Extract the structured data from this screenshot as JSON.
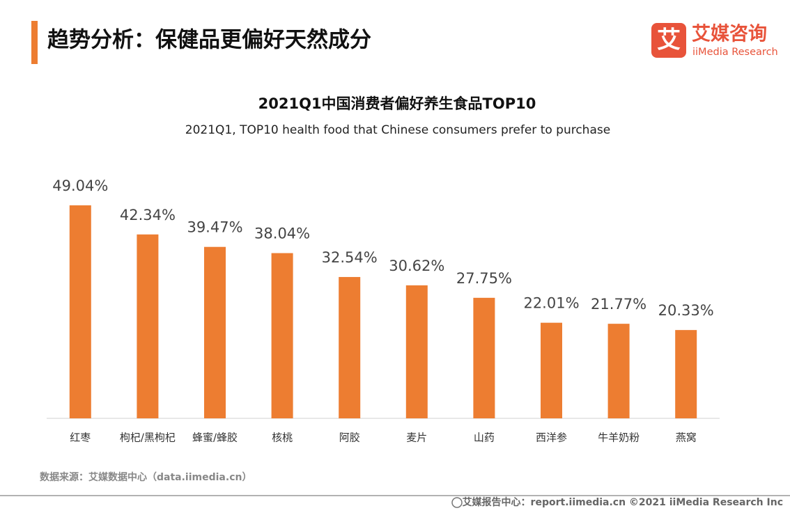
{
  "header": {
    "title": "趋势分析：保健品更偏好天然成分",
    "logo_mark": "艾",
    "logo_name": "艾媒咨询",
    "logo_sub": "iiMedia Research"
  },
  "chart_data": {
    "type": "bar",
    "title": "2021Q1中国消费者偏好养生食品TOP10",
    "subtitle": "2021Q1, TOP10  health food that Chinese consumers prefer to purchase",
    "categories": [
      "红枣",
      "枸杞/黑枸杞",
      "蜂蜜/蜂胶",
      "核桃",
      "阿胶",
      "麦片",
      "山药",
      "西洋参",
      "牛羊奶粉",
      "燕窝"
    ],
    "values": [
      49.04,
      42.34,
      39.47,
      38.04,
      32.54,
      30.62,
      27.75,
      22.01,
      21.77,
      20.33
    ],
    "value_labels": [
      "49.04%",
      "42.34%",
      "39.47%",
      "38.04%",
      "32.54%",
      "30.62%",
      "27.75%",
      "22.01%",
      "21.77%",
      "20.33%"
    ],
    "color": "#ed7d31"
  },
  "source": "数据来源：艾媒数据中心（data.iimedia.cn）",
  "footer": "艾媒报告中心：report.iimedia.cn  ©2021  iiMedia Research  Inc"
}
